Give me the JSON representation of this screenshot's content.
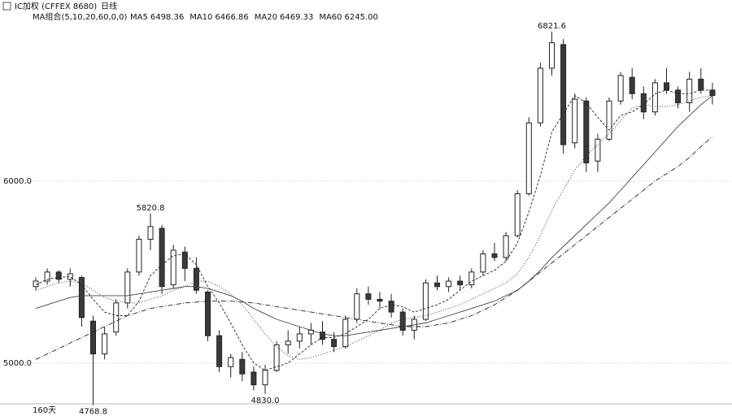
{
  "title": "IC加权 (CFFEX 8680)",
  "period": "日线",
  "indicator": "MA组合(5,10,20,60,0,0)",
  "span": "160天",
  "chart_data": {
    "type": "candlestick",
    "open": [
      5420,
      5450,
      5500,
      5460,
      5470,
      5230,
      5050,
      5170,
      5330,
      5500,
      5680,
      5740,
      5430,
      5610,
      5520,
      5390,
      5150,
      4980,
      5020,
      4950,
      4880,
      4960,
      5100,
      5120,
      5160,
      5170,
      5130,
      5090,
      5240,
      5380,
      5350,
      5340,
      5280,
      5180,
      5240,
      5440,
      5420,
      5450,
      5430,
      5500,
      5600,
      5580,
      5700,
      5930,
      6320,
      6620,
      6750,
      6210,
      6440,
      6110,
      6230,
      6440,
      6570,
      6480,
      6380,
      6540,
      6500,
      6430,
      6560,
      6500
    ],
    "high": [
      5470,
      5520,
      5510,
      5520,
      5480,
      5260,
      5200,
      5350,
      5520,
      5700,
      5820.8,
      5760,
      5650,
      5640,
      5580,
      5400,
      5180,
      5050,
      5060,
      4980,
      4990,
      5120,
      5180,
      5200,
      5220,
      5230,
      5170,
      5260,
      5410,
      5420,
      5390,
      5380,
      5300,
      5260,
      5460,
      5480,
      5470,
      5480,
      5520,
      5620,
      5660,
      5720,
      5950,
      6350,
      6650,
      6821.6,
      6780,
      6480,
      6460,
      6260,
      6460,
      6600,
      6620,
      6520,
      6560,
      6620,
      6520,
      6600,
      6620,
      6540
    ],
    "low": [
      5400,
      5430,
      5440,
      5420,
      5200,
      4768.8,
      5020,
      5150,
      5300,
      5480,
      5620,
      5380,
      5410,
      5450,
      5380,
      5120,
      4950,
      4920,
      4900,
      4850,
      4830.0,
      4950,
      5050,
      5080,
      5100,
      5100,
      5060,
      5080,
      5220,
      5320,
      5300,
      5250,
      5150,
      5130,
      5230,
      5400,
      5390,
      5400,
      5410,
      5480,
      5560,
      5560,
      5690,
      5920,
      6300,
      6580,
      6150,
      6180,
      6050,
      6050,
      6220,
      6420,
      6450,
      6340,
      6360,
      6480,
      6400,
      6380,
      6480,
      6420
    ],
    "close": [
      5450,
      5500,
      5460,
      5490,
      5250,
      5050,
      5160,
      5330,
      5500,
      5680,
      5750,
      5420,
      5620,
      5520,
      5400,
      5150,
      4980,
      5030,
      4940,
      4880,
      4960,
      5100,
      5120,
      5160,
      5180,
      5130,
      5090,
      5240,
      5380,
      5350,
      5340,
      5280,
      5180,
      5240,
      5440,
      5420,
      5450,
      5430,
      5500,
      5600,
      5580,
      5700,
      5930,
      6320,
      6620,
      6760,
      6200,
      6450,
      6100,
      6230,
      6440,
      6580,
      6480,
      6380,
      6540,
      6500,
      6430,
      6560,
      6500,
      6470
    ],
    "high_labels": [
      null,
      null,
      null,
      null,
      null,
      null,
      null,
      null,
      null,
      null,
      "5820.8",
      null,
      null,
      null,
      null,
      null,
      null,
      null,
      null,
      null,
      null,
      null,
      null,
      null,
      null,
      null,
      null,
      null,
      null,
      null,
      null,
      null,
      null,
      null,
      null,
      null,
      null,
      null,
      null,
      null,
      null,
      null,
      null,
      null,
      null,
      "6821.6",
      null,
      null,
      null,
      null,
      null,
      null,
      null,
      null,
      null,
      null,
      null,
      null,
      null,
      null
    ],
    "low_labels": [
      null,
      null,
      null,
      null,
      null,
      "4768.8",
      null,
      null,
      null,
      null,
      null,
      null,
      null,
      null,
      null,
      null,
      null,
      null,
      null,
      null,
      "4830.0",
      null,
      null,
      null,
      null,
      null,
      null,
      null,
      null,
      null,
      null,
      null,
      null,
      null,
      null,
      null,
      null,
      null,
      null,
      null,
      null,
      null,
      null,
      null,
      null,
      null,
      null,
      null,
      null,
      null,
      null,
      null,
      null,
      null,
      null,
      null,
      null,
      null,
      null,
      null
    ],
    "up_color": "#ffffff",
    "down_color": "#3a3a3a",
    "edge_color": "#222222",
    "ylim": [
      4740,
      6870
    ],
    "yticks": [
      {
        "value": 5000,
        "label": "5000.0"
      },
      {
        "value": 6000,
        "label": "6000.0"
      }
    ],
    "grid": true,
    "series": [
      {
        "name": "MA5",
        "latest": "6498.36",
        "color": "#222222",
        "dash": "3 2",
        "values": [
          5430,
          5460,
          5470,
          5475,
          5430,
          5350,
          5280,
          5260,
          5260,
          5340,
          5480,
          5540,
          5590,
          5600,
          5540,
          5420,
          5330,
          5220,
          5100,
          5000,
          4960,
          4980,
          5000,
          5050,
          5100,
          5140,
          5140,
          5160,
          5200,
          5240,
          5300,
          5320,
          5310,
          5280,
          5300,
          5320,
          5350,
          5400,
          5450,
          5480,
          5510,
          5560,
          5660,
          5830,
          6030,
          6270,
          6370,
          6470,
          6430,
          6350,
          6280,
          6360,
          6380,
          6420,
          6480,
          6500,
          6480,
          6480,
          6500,
          6500
        ]
      },
      {
        "name": "MA10",
        "latest": "6466.86",
        "color": "#333333",
        "dash": "1 2",
        "values": [
          5400,
          5420,
          5440,
          5450,
          5440,
          5400,
          5360,
          5340,
          5330,
          5330,
          5350,
          5370,
          5400,
          5420,
          5450,
          5450,
          5420,
          5380,
          5320,
          5240,
          5160,
          5090,
          5040,
          5020,
          5030,
          5050,
          5070,
          5090,
          5120,
          5150,
          5180,
          5220,
          5240,
          5250,
          5260,
          5280,
          5300,
          5320,
          5350,
          5380,
          5410,
          5440,
          5490,
          5580,
          5700,
          5840,
          5950,
          6060,
          6140,
          6200,
          6260,
          6330,
          6400,
          6420,
          6410,
          6410,
          6420,
          6440,
          6460,
          6470
        ]
      },
      {
        "name": "MA20",
        "latest": "6469.33",
        "color": "#444444",
        "dash": "none",
        "values": [
          5300,
          5320,
          5340,
          5360,
          5370,
          5370,
          5370,
          5370,
          5370,
          5380,
          5390,
          5400,
          5410,
          5420,
          5420,
          5410,
          5390,
          5370,
          5340,
          5300,
          5270,
          5240,
          5220,
          5200,
          5180,
          5160,
          5150,
          5150,
          5160,
          5170,
          5180,
          5190,
          5200,
          5210,
          5220,
          5240,
          5260,
          5280,
          5300,
          5320,
          5340,
          5370,
          5400,
          5450,
          5510,
          5580,
          5640,
          5700,
          5760,
          5820,
          5880,
          5950,
          6020,
          6090,
          6160,
          6230,
          6300,
          6360,
          6420,
          6469
        ]
      },
      {
        "name": "MA60",
        "latest": "6245.00",
        "color": "#222222",
        "dash": "6 2 1 2",
        "values": [
          5020,
          5050,
          5080,
          5110,
          5140,
          5170,
          5200,
          5230,
          5260,
          5280,
          5300,
          5310,
          5320,
          5330,
          5335,
          5340,
          5340,
          5340,
          5335,
          5330,
          5320,
          5310,
          5300,
          5290,
          5280,
          5270,
          5260,
          5250,
          5240,
          5230,
          5220,
          5210,
          5200,
          5200,
          5200,
          5210,
          5220,
          5240,
          5260,
          5290,
          5320,
          5360,
          5400,
          5450,
          5500,
          5550,
          5600,
          5650,
          5700,
          5750,
          5800,
          5850,
          5900,
          5950,
          6000,
          6040,
          6080,
          6130,
          6190,
          6245
        ]
      }
    ]
  }
}
